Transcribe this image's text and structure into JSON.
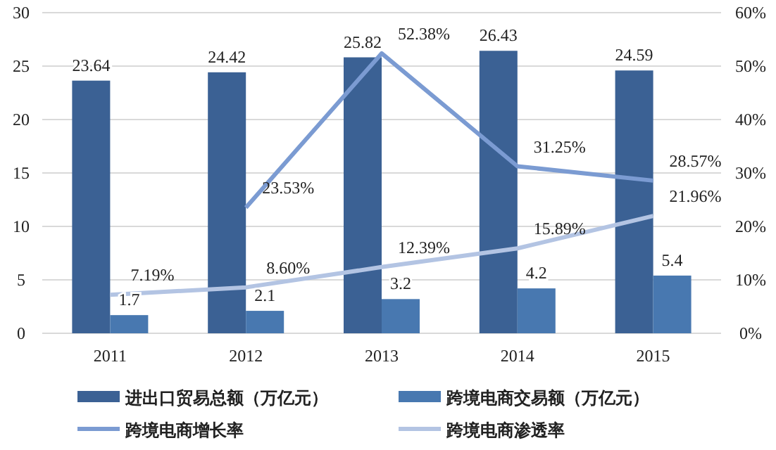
{
  "chart_data": {
    "type": "bar",
    "categories": [
      "2011",
      "2012",
      "2013",
      "2014",
      "2015"
    ],
    "ylim": [
      0,
      30
    ],
    "yticks": [
      0,
      5,
      10,
      15,
      20,
      25,
      30
    ],
    "y2lim": [
      0,
      60
    ],
    "y2ticks": [
      {
        "value": 0,
        "label": "0%"
      },
      {
        "value": 10,
        "label": "10%"
      },
      {
        "value": 20,
        "label": "20%"
      },
      {
        "value": 30,
        "label": "30%"
      },
      {
        "value": 40,
        "label": "40%"
      },
      {
        "value": 50,
        "label": "50%"
      },
      {
        "value": 60,
        "label": "60%"
      }
    ],
    "grid": "y",
    "legend": "bottom",
    "series": [
      {
        "name": "进出口贸易总额（万亿元）",
        "color": "#3b6194",
        "values": [
          23.64,
          24.42,
          25.82,
          26.43,
          24.59
        ],
        "value_labels": [
          "23.64",
          "24.42",
          "25.82",
          "26.43",
          "24.59"
        ]
      },
      {
        "name": "跨境电商交易额（万亿元）",
        "color": "#4878b0",
        "values": [
          1.7,
          2.1,
          3.2,
          4.2,
          5.4
        ],
        "value_labels": [
          "1.7",
          "2.1",
          "3.2",
          "4.2",
          "5.4"
        ]
      },
      {
        "name": "跨境电商增长率",
        "type": "line",
        "axis": "y2",
        "color": "#7b9bd2",
        "values": [
          null,
          23.53,
          52.38,
          31.25,
          28.57
        ],
        "value_labels": [
          null,
          "23.53%",
          "52.38%",
          "31.25%",
          "28.57%"
        ]
      },
      {
        "name": "跨境电商渗透率",
        "type": "line",
        "axis": "y2",
        "color": "#b3c4e3",
        "values": [
          7.19,
          8.6,
          12.39,
          15.89,
          21.96
        ],
        "value_labels": [
          "7.19%",
          "8.60%",
          "12.39%",
          "15.89%",
          "21.96%"
        ]
      }
    ]
  }
}
